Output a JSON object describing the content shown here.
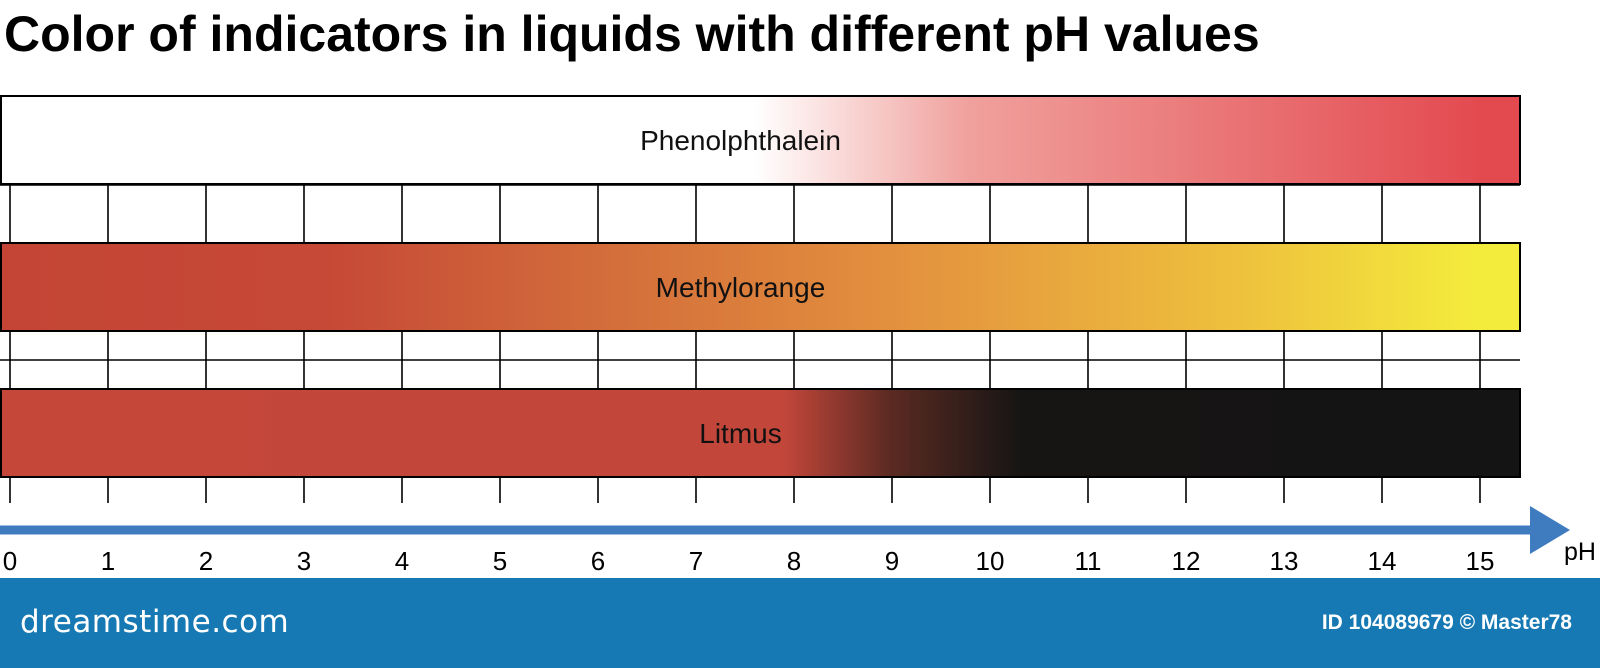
{
  "chart_data": {
    "type": "heatmap",
    "title": "Color of indicators in liquids with different pH values",
    "xlabel": "pH",
    "x_ticks": [
      0,
      1,
      2,
      3,
      4,
      5,
      6,
      7,
      8,
      9,
      10,
      11,
      12,
      13,
      14,
      15
    ],
    "xlim": [
      0,
      15
    ],
    "grid": true,
    "indicators": [
      {
        "name": "Phenolphthalein",
        "color_stops": [
          {
            "ph": 0,
            "color": "#ffffff"
          },
          {
            "ph": 7.6,
            "color": "#ffffff"
          },
          {
            "ph": 9.8,
            "color": "#f0a09c"
          },
          {
            "ph": 15,
            "color": "#e34a50"
          }
        ]
      },
      {
        "name": "Methylorange",
        "color_stops": [
          {
            "ph": 0,
            "color": "#c44535"
          },
          {
            "ph": 3.2,
            "color": "#c64836"
          },
          {
            "ph": 5.5,
            "color": "#d0663a"
          },
          {
            "ph": 9,
            "color": "#e3903e"
          },
          {
            "ph": 12.5,
            "color": "#eec03d"
          },
          {
            "ph": 15,
            "color": "#f4ec3c"
          }
        ]
      },
      {
        "name": "Litmus",
        "color_stops": [
          {
            "ph": 0,
            "color": "#c4473a"
          },
          {
            "ph": 7.9,
            "color": "#c2463a"
          },
          {
            "ph": 9,
            "color": "#5a2a22"
          },
          {
            "ph": 10.3,
            "color": "#171514"
          },
          {
            "ph": 15,
            "color": "#141414"
          }
        ]
      }
    ]
  },
  "axis_color": "#3f7cbf",
  "footer": {
    "brand": "dreamstime.com",
    "credit": "ID 104089679 © Master78"
  }
}
